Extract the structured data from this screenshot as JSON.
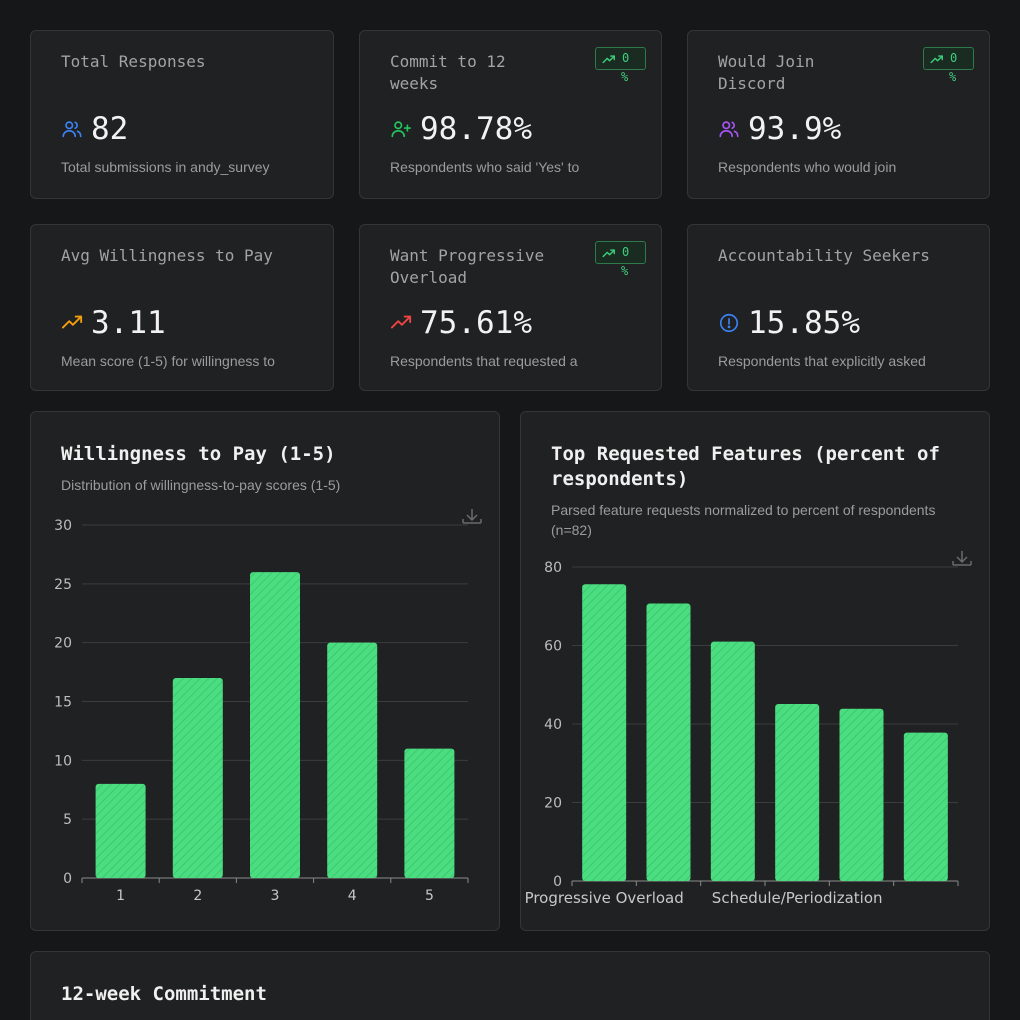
{
  "stats": [
    {
      "title": "Total Responses",
      "value": "82",
      "desc": "Total submissions in andy_survey",
      "icon": "users-icon",
      "icon_color": "#3b82f6"
    },
    {
      "title": "Commit to 12 weeks",
      "value": "98.78%",
      "desc": "Respondents who said 'Yes' to",
      "icon": "user-plus-icon",
      "icon_color": "#22c55e",
      "badge": {
        "value": "0",
        "unit": "%"
      }
    },
    {
      "title": "Would Join Discord",
      "value": "93.9%",
      "desc": "Respondents who would join",
      "icon": "users-icon",
      "icon_color": "#a855f7",
      "badge": {
        "value": "0",
        "unit": "%"
      }
    },
    {
      "title": "Avg Willingness to Pay",
      "value": "3.11",
      "desc": "Mean score (1-5) for willingness to",
      "icon": "trending-up-icon",
      "icon_color": "#f59e0b"
    },
    {
      "title": "Want Progressive Overload",
      "value": "75.61%",
      "desc": "Respondents that requested a",
      "icon": "trending-up-icon",
      "icon_color": "#ef4444",
      "badge": {
        "value": "0",
        "unit": "%"
      }
    },
    {
      "title": "Accountability Seekers",
      "value": "15.85%",
      "desc": "Respondents that explicitly asked",
      "icon": "alert-circle-icon",
      "icon_color": "#3b82f6"
    }
  ],
  "chart_data": [
    {
      "type": "bar",
      "title": "Willingness to Pay (1-5)",
      "subtitle": "Distribution of willingness-to-pay scores (1-5)",
      "categories": [
        "1",
        "2",
        "3",
        "4",
        "5"
      ],
      "values": [
        8,
        17,
        26,
        20,
        11
      ],
      "ylim": [
        0,
        30
      ],
      "yticks": [
        "0",
        "5",
        "10",
        "15",
        "20",
        "25",
        "30"
      ],
      "grid": true,
      "bar_color": "#4ade80"
    },
    {
      "type": "bar",
      "title": "Top Requested Features (percent of respondents)",
      "subtitle": "Parsed feature requests normalized to percent of respondents (n=82)",
      "categories": [
        "Progressive Overload",
        "",
        "",
        "Schedule/Periodization",
        "",
        ""
      ],
      "values": [
        75.6,
        70.7,
        61,
        45.1,
        43.9,
        37.8
      ],
      "ylim": [
        0,
        80
      ],
      "yticks": [
        "0",
        "20",
        "40",
        "60",
        "80"
      ],
      "grid": true,
      "bar_color": "#4ade80"
    }
  ],
  "commitment": {
    "title": "12-week Commitment"
  }
}
